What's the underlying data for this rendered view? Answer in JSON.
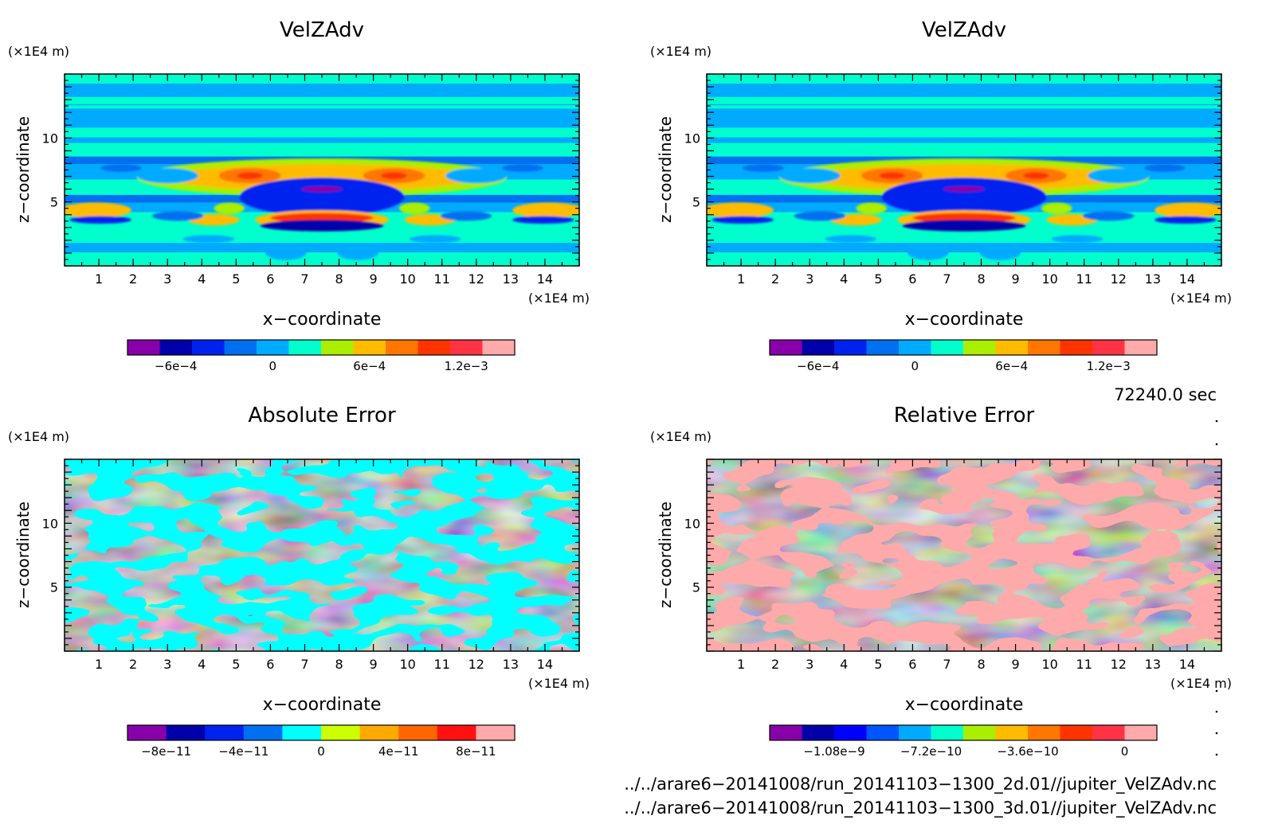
{
  "chart_data": [
    {
      "type": "heatmap",
      "title": "VelZAdv",
      "xlabel": "x−coordinate",
      "ylabel": "z−coordinate",
      "x_unit": "(×1E4 m)",
      "y_unit": "(×1E4 m)",
      "xlim": [
        0,
        15
      ],
      "ylim": [
        0,
        15
      ],
      "x_ticks": [
        "1",
        "2",
        "3",
        "4",
        "5",
        "6",
        "7",
        "8",
        "9",
        "10",
        "11",
        "12",
        "13",
        "14"
      ],
      "y_ticks": [
        "5",
        "10"
      ],
      "colorbar": {
        "colors": [
          "#8800aa",
          "#0000aa",
          "#0022ee",
          "#0070f0",
          "#00aaff",
          "#00ffcc",
          "#aaee00",
          "#ffbb00",
          "#ff7700",
          "#ff3300",
          "#ff3344",
          "#ffaaaa"
        ],
        "range": [
          -0.0009,
          0.0015
        ],
        "tick_labels": [
          "−6e−4",
          "0",
          "6e−4",
          "1.2e−3"
        ],
        "tick_values": [
          -0.0006,
          0,
          0.0006,
          0.0012
        ]
      }
    },
    {
      "type": "heatmap",
      "title": "VelZAdv",
      "xlabel": "x−coordinate",
      "ylabel": "z−coordinate",
      "x_unit": "(×1E4 m)",
      "y_unit": "(×1E4 m)",
      "xlim": [
        0,
        15
      ],
      "ylim": [
        0,
        15
      ],
      "x_ticks": [
        "1",
        "2",
        "3",
        "4",
        "5",
        "6",
        "7",
        "8",
        "9",
        "10",
        "11",
        "12",
        "13",
        "14"
      ],
      "y_ticks": [
        "5",
        "10"
      ],
      "colorbar": {
        "colors": [
          "#8800aa",
          "#0000aa",
          "#0022ee",
          "#0070f0",
          "#00aaff",
          "#00ffcc",
          "#aaee00",
          "#ffbb00",
          "#ff7700",
          "#ff3300",
          "#ff3344",
          "#ffaaaa"
        ],
        "range": [
          -0.0009,
          0.0015
        ],
        "tick_labels": [
          "−6e−4",
          "0",
          "6e−4",
          "1.2e−3"
        ],
        "tick_values": [
          -0.0006,
          0,
          0.0006,
          0.0012
        ]
      }
    },
    {
      "type": "heatmap",
      "title": "Absolute Error",
      "xlabel": "x−coordinate",
      "ylabel": "z−coordinate",
      "x_unit": "(×1E4 m)",
      "y_unit": "(×1E4 m)",
      "xlim": [
        0,
        15
      ],
      "ylim": [
        0,
        15
      ],
      "x_ticks": [
        "1",
        "2",
        "3",
        "4",
        "5",
        "6",
        "7",
        "8",
        "9",
        "10",
        "11",
        "12",
        "13",
        "14"
      ],
      "y_ticks": [
        "5",
        "10"
      ],
      "colorbar": {
        "colors": [
          "#8800aa",
          "#0000aa",
          "#0022ee",
          "#0070f0",
          "#00ffff",
          "#ccff00",
          "#ffaa00",
          "#ff6600",
          "#ff1111",
          "#ffaaaa"
        ],
        "range": [
          -1e-10,
          1e-10
        ],
        "tick_labels": [
          "−8e−11",
          "−4e−11",
          "0",
          "4e−11",
          "8e−11"
        ],
        "tick_values": [
          -8e-11,
          -4e-11,
          0,
          4e-11,
          8e-11
        ]
      }
    },
    {
      "type": "heatmap",
      "title": "Relative Error",
      "xlabel": "x−coordinate",
      "ylabel": "z−coordinate",
      "x_unit": "(×1E4 m)",
      "y_unit": "(×1E4 m)",
      "xlim": [
        0,
        15
      ],
      "ylim": [
        0,
        15
      ],
      "x_ticks": [
        "1",
        "2",
        "3",
        "4",
        "5",
        "6",
        "7",
        "8",
        "9",
        "10",
        "11",
        "12",
        "13",
        "14"
      ],
      "y_ticks": [
        "5",
        "10"
      ],
      "colorbar": {
        "colors": [
          "#8800aa",
          "#0000aa",
          "#0000ff",
          "#0055ff",
          "#00aaff",
          "#00ffcc",
          "#aaee00",
          "#ffbb00",
          "#ff7700",
          "#ff3300",
          "#ff3344",
          "#ffaaaa"
        ],
        "range": [
          -1.32e-09,
          1.2e-10
        ],
        "tick_labels": [
          "−1.08e−9",
          "−7.2e−10",
          "−3.6e−10",
          "0"
        ],
        "tick_values": [
          -1.08e-09,
          -7.2e-10,
          -3.6e-10,
          0
        ]
      }
    }
  ],
  "info": {
    "time_label": "72240.0 sec",
    "file_2d": "../../arare6−20141008/run_20141103−1300_2d.01//jupiter_VelZAdv.nc",
    "file_3d": "../../arare6−20141008/run_20141103−1300_3d.01//jupiter_VelZAdv.nc"
  }
}
